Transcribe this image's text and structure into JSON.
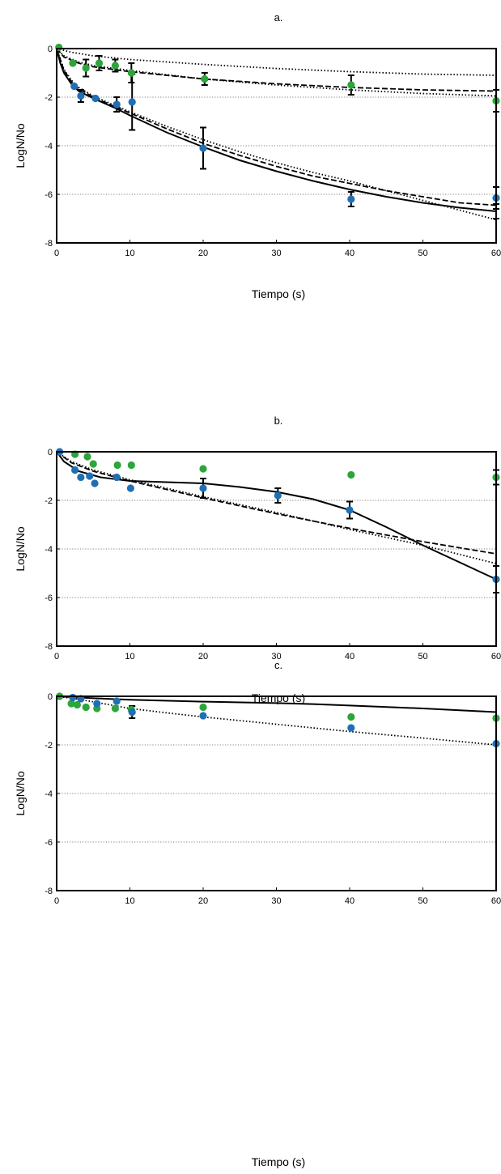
{
  "figure": {
    "series_colors": {
      "green": "#2ca53a",
      "blue": "#1f6fb5"
    },
    "line_color": "#000000",
    "grid": "dotted horizontal"
  },
  "chart_data": [
    {
      "type": "scatter",
      "title": "a.",
      "xlabel": "Tiempo (s)",
      "ylabel": "LogN/No",
      "xlim": [
        0,
        60
      ],
      "ylim": [
        -8,
        0
      ],
      "xticks": [
        "0",
        "10",
        "20",
        "30",
        "40",
        "50",
        "60"
      ],
      "yticks": [
        "0",
        "-2",
        "-4",
        "-6",
        "-8"
      ],
      "grid": true,
      "points": {
        "green": [
          {
            "x": 0.3,
            "y": 0.05
          },
          {
            "x": 2.2,
            "y": -0.6
          },
          {
            "x": 4.0,
            "y": -0.8
          },
          {
            "x": 5.8,
            "y": -0.6
          },
          {
            "x": 8.0,
            "y": -0.7
          },
          {
            "x": 10.2,
            "y": -1.0
          },
          {
            "x": 20.2,
            "y": -1.25
          },
          {
            "x": 40.2,
            "y": -1.5
          },
          {
            "x": 60.0,
            "y": -2.15
          }
        ],
        "blue": [
          {
            "x": 2.4,
            "y": -1.55
          },
          {
            "x": 3.3,
            "y": -1.95
          },
          {
            "x": 5.3,
            "y": -2.05
          },
          {
            "x": 8.2,
            "y": -2.3
          },
          {
            "x": 10.3,
            "y": -2.2
          },
          {
            "x": 20.0,
            "y": -4.1
          },
          {
            "x": 40.2,
            "y": -6.2
          },
          {
            "x": 60.0,
            "y": -6.15
          }
        ]
      },
      "error_bars": [
        {
          "x": 4.0,
          "y": -0.8,
          "err": 0.35
        },
        {
          "x": 5.8,
          "y": -0.6,
          "err": 0.3
        },
        {
          "x": 8.0,
          "y": -0.7,
          "err": 0.25
        },
        {
          "x": 10.2,
          "y": -1.0,
          "err": 0.4
        },
        {
          "x": 20.2,
          "y": -1.25,
          "err": 0.25
        },
        {
          "x": 40.2,
          "y": -1.5,
          "err": 0.4
        },
        {
          "x": 60.0,
          "y": -2.15,
          "err": 0.45
        },
        {
          "x": 3.3,
          "y": -1.95,
          "err": 0.25
        },
        {
          "x": 8.2,
          "y": -2.3,
          "err": 0.3
        },
        {
          "x": 10.3,
          "y": -2.2,
          "err": 1.15
        },
        {
          "x": 20.0,
          "y": -4.1,
          "err": 0.85
        },
        {
          "x": 40.2,
          "y": -6.2,
          "err": 0.3
        },
        {
          "x": 60.0,
          "y": -6.15,
          "err": 0.45
        },
        {
          "x": 60.0,
          "y": -6.7,
          "err": 0.3
        }
      ],
      "lines": [
        {
          "style": "dotted",
          "points": [
            [
              0,
              0
            ],
            [
              2,
              -0.15
            ],
            [
              5,
              -0.3
            ],
            [
              10,
              -0.45
            ],
            [
              20,
              -0.65
            ],
            [
              30,
              -0.82
            ],
            [
              40,
              -0.95
            ],
            [
              50,
              -1.05
            ],
            [
              60,
              -1.1
            ]
          ]
        },
        {
          "style": "dashed",
          "points": [
            [
              0,
              0
            ],
            [
              1,
              -0.35
            ],
            [
              3,
              -0.6
            ],
            [
              5,
              -0.75
            ],
            [
              10,
              -0.95
            ],
            [
              20,
              -1.25
            ],
            [
              30,
              -1.45
            ],
            [
              40,
              -1.6
            ],
            [
              50,
              -1.7
            ],
            [
              60,
              -1.75
            ]
          ]
        },
        {
          "style": "dotted",
          "points": [
            [
              0,
              0
            ],
            [
              1,
              -0.3
            ],
            [
              3,
              -0.55
            ],
            [
              5,
              -0.7
            ],
            [
              10,
              -0.9
            ],
            [
              20,
              -1.25
            ],
            [
              30,
              -1.5
            ],
            [
              40,
              -1.7
            ],
            [
              50,
              -1.85
            ],
            [
              60,
              -1.95
            ]
          ]
        },
        {
          "style": "solid",
          "points": [
            [
              0,
              0
            ],
            [
              0.5,
              -0.6
            ],
            [
              1,
              -1.0
            ],
            [
              2,
              -1.45
            ],
            [
              3,
              -1.75
            ],
            [
              5,
              -2.05
            ],
            [
              8,
              -2.45
            ],
            [
              10,
              -2.75
            ],
            [
              15,
              -3.45
            ],
            [
              20,
              -4.05
            ],
            [
              25,
              -4.6
            ],
            [
              30,
              -5.05
            ],
            [
              35,
              -5.45
            ],
            [
              40,
              -5.8
            ],
            [
              45,
              -6.1
            ],
            [
              50,
              -6.35
            ],
            [
              55,
              -6.55
            ],
            [
              60,
              -6.7
            ]
          ]
        },
        {
          "style": "dashed",
          "points": [
            [
              0,
              0
            ],
            [
              1,
              -0.9
            ],
            [
              2,
              -1.35
            ],
            [
              3,
              -1.65
            ],
            [
              5,
              -2.0
            ],
            [
              8,
              -2.4
            ],
            [
              10,
              -2.65
            ],
            [
              15,
              -3.3
            ],
            [
              20,
              -3.9
            ],
            [
              25,
              -4.4
            ],
            [
              30,
              -4.85
            ],
            [
              35,
              -5.25
            ],
            [
              40,
              -5.55
            ],
            [
              45,
              -5.85
            ],
            [
              50,
              -6.1
            ],
            [
              55,
              -6.35
            ],
            [
              60,
              -6.45
            ]
          ]
        },
        {
          "style": "dotted",
          "points": [
            [
              0,
              0
            ],
            [
              1,
              -0.85
            ],
            [
              2,
              -1.3
            ],
            [
              3,
              -1.6
            ],
            [
              5,
              -1.95
            ],
            [
              8,
              -2.35
            ],
            [
              10,
              -2.6
            ],
            [
              15,
              -3.2
            ],
            [
              20,
              -3.75
            ],
            [
              25,
              -4.25
            ],
            [
              30,
              -4.7
            ],
            [
              35,
              -5.1
            ],
            [
              40,
              -5.45
            ],
            [
              45,
              -5.85
            ],
            [
              50,
              -6.25
            ],
            [
              55,
              -6.65
            ],
            [
              60,
              -7.05
            ]
          ]
        }
      ]
    },
    {
      "type": "scatter",
      "title": "b.",
      "xlabel": "Tiempo (s)",
      "ylabel": "LogN/No",
      "xlim": [
        0,
        60
      ],
      "ylim": [
        -8,
        0
      ],
      "xticks": [
        "0",
        "10",
        "20",
        "30",
        "40",
        "50",
        "60"
      ],
      "yticks": [
        "0",
        "-2",
        "-4",
        "-6",
        "-8"
      ],
      "grid": true,
      "points": {
        "green": [
          {
            "x": 2.5,
            "y": -0.1
          },
          {
            "x": 4.2,
            "y": -0.2
          },
          {
            "x": 5.0,
            "y": -0.5
          },
          {
            "x": 8.3,
            "y": -0.55
          },
          {
            "x": 10.2,
            "y": -0.55
          },
          {
            "x": 20.0,
            "y": -0.7
          },
          {
            "x": 40.2,
            "y": -0.95
          },
          {
            "x": 60.0,
            "y": -1.05
          }
        ],
        "blue": [
          {
            "x": 0.4,
            "y": 0.0
          },
          {
            "x": 2.5,
            "y": -0.75
          },
          {
            "x": 3.3,
            "y": -1.05
          },
          {
            "x": 4.5,
            "y": -1.0
          },
          {
            "x": 5.2,
            "y": -1.3
          },
          {
            "x": 8.2,
            "y": -1.05
          },
          {
            "x": 10.1,
            "y": -1.5
          },
          {
            "x": 20.0,
            "y": -1.5
          },
          {
            "x": 30.2,
            "y": -1.8
          },
          {
            "x": 40.0,
            "y": -2.4
          },
          {
            "x": 60.0,
            "y": -5.25
          }
        ]
      },
      "error_bars": [
        {
          "x": 20.0,
          "y": -1.5,
          "err": 0.4
        },
        {
          "x": 30.2,
          "y": -1.8,
          "err": 0.3
        },
        {
          "x": 40.0,
          "y": -2.4,
          "err": 0.35
        },
        {
          "x": 60.0,
          "y": -1.05,
          "err": 0.3
        },
        {
          "x": 60.0,
          "y": -5.25,
          "err": 0.55
        }
      ],
      "lines": [
        {
          "style": "solid",
          "points": [
            [
              0,
              0
            ],
            [
              1,
              -0.4
            ],
            [
              3,
              -0.8
            ],
            [
              6,
              -1.05
            ],
            [
              10,
              -1.2
            ],
            [
              15,
              -1.25
            ],
            [
              20,
              -1.3
            ],
            [
              25,
              -1.45
            ],
            [
              30,
              -1.65
            ],
            [
              35,
              -1.95
            ],
            [
              40,
              -2.4
            ],
            [
              45,
              -3.1
            ],
            [
              50,
              -3.85
            ],
            [
              55,
              -4.55
            ],
            [
              60,
              -5.25
            ]
          ]
        },
        {
          "style": "dashed",
          "points": [
            [
              0,
              0
            ],
            [
              2,
              -0.45
            ],
            [
              5,
              -0.8
            ],
            [
              10,
              -1.2
            ],
            [
              15,
              -1.55
            ],
            [
              20,
              -1.9
            ],
            [
              30,
              -2.55
            ],
            [
              40,
              -3.15
            ],
            [
              50,
              -3.7
            ],
            [
              60,
              -4.2
            ]
          ]
        },
        {
          "style": "dotted",
          "points": [
            [
              0,
              0
            ],
            [
              2,
              -0.4
            ],
            [
              5,
              -0.75
            ],
            [
              10,
              -1.15
            ],
            [
              15,
              -1.5
            ],
            [
              20,
              -1.85
            ],
            [
              30,
              -2.5
            ],
            [
              40,
              -3.2
            ],
            [
              50,
              -3.85
            ],
            [
              60,
              -4.6
            ]
          ]
        }
      ]
    },
    {
      "type": "scatter",
      "title": "c.",
      "xlabel": "Tiempo (s)",
      "ylabel": "LogN/No",
      "xlim": [
        0,
        60
      ],
      "ylim": [
        -8,
        0
      ],
      "xticks": [
        "0",
        "10",
        "20",
        "30",
        "40",
        "50",
        "60"
      ],
      "yticks": [
        "0",
        "-2",
        "-4",
        "-6",
        "-8"
      ],
      "grid": true,
      "points": {
        "green": [
          {
            "x": 0.4,
            "y": 0.0
          },
          {
            "x": 2.0,
            "y": -0.3
          },
          {
            "x": 2.8,
            "y": -0.35
          },
          {
            "x": 4.0,
            "y": -0.45
          },
          {
            "x": 5.5,
            "y": -0.5
          },
          {
            "x": 8.0,
            "y": -0.5
          },
          {
            "x": 10.2,
            "y": -0.55
          },
          {
            "x": 20.0,
            "y": -0.45
          },
          {
            "x": 40.2,
            "y": -0.85
          },
          {
            "x": 60.0,
            "y": -0.9
          }
        ],
        "blue": [
          {
            "x": 2.2,
            "y": -0.05
          },
          {
            "x": 3.3,
            "y": -0.1
          },
          {
            "x": 5.5,
            "y": -0.3
          },
          {
            "x": 8.2,
            "y": -0.2
          },
          {
            "x": 10.3,
            "y": -0.65
          },
          {
            "x": 20.0,
            "y": -0.8
          },
          {
            "x": 40.2,
            "y": -1.3
          },
          {
            "x": 60.0,
            "y": -1.95
          }
        ]
      },
      "error_bars": [
        {
          "x": 10.3,
          "y": -0.65,
          "err": 0.25
        }
      ],
      "lines": [
        {
          "style": "solid",
          "points": [
            [
              0,
              0
            ],
            [
              5,
              -0.08
            ],
            [
              10,
              -0.14
            ],
            [
              20,
              -0.22
            ],
            [
              30,
              -0.28
            ],
            [
              35,
              -0.32
            ],
            [
              40,
              -0.38
            ],
            [
              50,
              -0.5
            ],
            [
              60,
              -0.65
            ]
          ]
        },
        {
          "style": "dotted",
          "points": [
            [
              0,
              0
            ],
            [
              3,
              -0.12
            ],
            [
              6,
              -0.28
            ],
            [
              10,
              -0.5
            ],
            [
              15,
              -0.68
            ],
            [
              20,
              -0.85
            ],
            [
              30,
              -1.15
            ],
            [
              40,
              -1.45
            ],
            [
              50,
              -1.72
            ],
            [
              60,
              -2.0
            ]
          ]
        }
      ]
    }
  ]
}
